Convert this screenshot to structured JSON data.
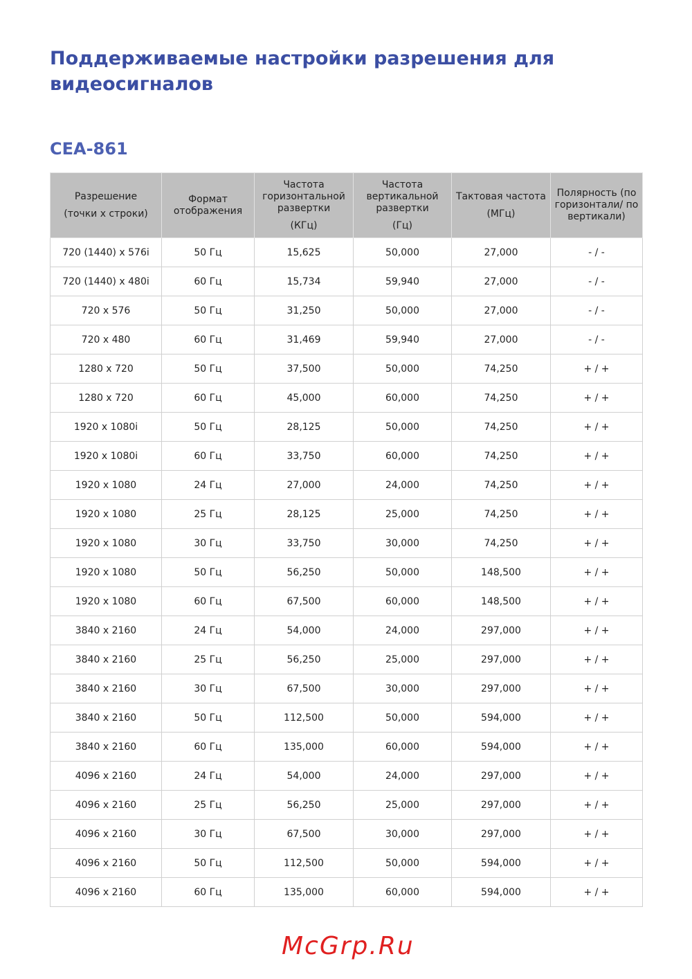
{
  "page_title": "Поддерживаемые настройки разрешения для видеосигналов",
  "section_title": "CEA-861",
  "table": {
    "headers": [
      [
        "Разрешение",
        "(точки x строки)"
      ],
      [
        "Формат отображения"
      ],
      [
        "Частота горизонтальной развертки",
        "(КГц)"
      ],
      [
        "Частота вертикальной развертки",
        "(Гц)"
      ],
      [
        "Тактовая частота",
        "(МГц)"
      ],
      [
        "Полярность (по горизонтали/ по вертикали)"
      ]
    ],
    "rows": [
      [
        "720 (1440) x 576i",
        "50 Гц",
        "15,625",
        "50,000",
        "27,000",
        "- / -"
      ],
      [
        "720 (1440) x 480i",
        "60 Гц",
        "15,734",
        "59,940",
        "27,000",
        "- / -"
      ],
      [
        "720 x 576",
        "50 Гц",
        "31,250",
        "50,000",
        "27,000",
        "- / -"
      ],
      [
        "720 x 480",
        "60 Гц",
        "31,469",
        "59,940",
        "27,000",
        "- / -"
      ],
      [
        "1280 x 720",
        "50 Гц",
        "37,500",
        "50,000",
        "74,250",
        "+ / +"
      ],
      [
        "1280 x 720",
        "60 Гц",
        "45,000",
        "60,000",
        "74,250",
        "+ / +"
      ],
      [
        "1920 x 1080i",
        "50 Гц",
        "28,125",
        "50,000",
        "74,250",
        "+ / +"
      ],
      [
        "1920 x 1080i",
        "60 Гц",
        "33,750",
        "60,000",
        "74,250",
        "+ / +"
      ],
      [
        "1920 x 1080",
        "24 Гц",
        "27,000",
        "24,000",
        "74,250",
        "+ / +"
      ],
      [
        "1920 x 1080",
        "25 Гц",
        "28,125",
        "25,000",
        "74,250",
        "+ / +"
      ],
      [
        "1920 x 1080",
        "30 Гц",
        "33,750",
        "30,000",
        "74,250",
        "+ / +"
      ],
      [
        "1920 x 1080",
        "50 Гц",
        "56,250",
        "50,000",
        "148,500",
        "+ / +"
      ],
      [
        "1920 x 1080",
        "60 Гц",
        "67,500",
        "60,000",
        "148,500",
        "+ / +"
      ],
      [
        "3840 x 2160",
        "24 Гц",
        "54,000",
        "24,000",
        "297,000",
        "+ / +"
      ],
      [
        "3840 x 2160",
        "25 Гц",
        "56,250",
        "25,000",
        "297,000",
        "+ / +"
      ],
      [
        "3840 x 2160",
        "30 Гц",
        "67,500",
        "30,000",
        "297,000",
        "+ / +"
      ],
      [
        "3840 x 2160",
        "50 Гц",
        "112,500",
        "50,000",
        "594,000",
        "+ / +"
      ],
      [
        "3840 x 2160",
        "60 Гц",
        "135,000",
        "60,000",
        "594,000",
        "+ / +"
      ],
      [
        "4096 x 2160",
        "24 Гц",
        "54,000",
        "24,000",
        "297,000",
        "+ / +"
      ],
      [
        "4096 x 2160",
        "25 Гц",
        "56,250",
        "25,000",
        "297,000",
        "+ / +"
      ],
      [
        "4096 x 2160",
        "30 Гц",
        "67,500",
        "30,000",
        "297,000",
        "+ / +"
      ],
      [
        "4096 x 2160",
        "50 Гц",
        "112,500",
        "50,000",
        "594,000",
        "+ / +"
      ],
      [
        "4096 x 2160",
        "60 Гц",
        "135,000",
        "60,000",
        "594,000",
        "+ / +"
      ]
    ]
  },
  "watermark": "McGrp.Ru",
  "colors": {
    "title": "#3b4ea3",
    "section": "#4c60b2",
    "header_bg": "#bfbfbf",
    "watermark": "#e02020"
  }
}
